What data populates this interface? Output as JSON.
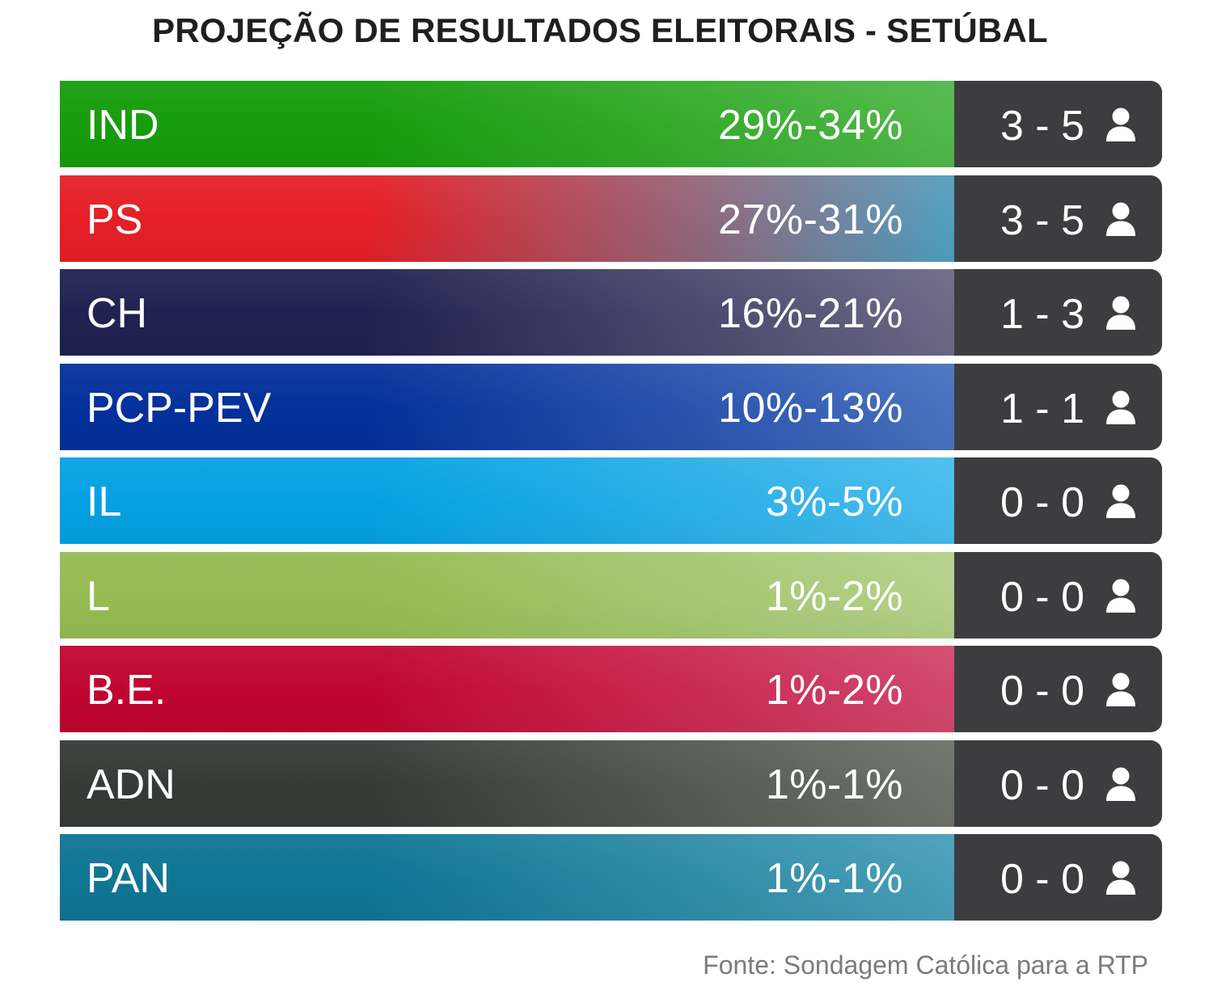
{
  "title": "PROJEÇÃO DE RESULTADOS ELEITORAIS - SETÚBAL",
  "source": "Fonte: Sondagem Católica para a RTP",
  "chart_data": {
    "type": "table",
    "title": "PROJEÇÃO DE RESULTADOS ELEITORAIS - SETÚBAL",
    "columns": [
      "party",
      "vote_range",
      "seats_range"
    ],
    "rows": [
      {
        "party": "IND",
        "range": "29%-34%",
        "seats": "3 - 5",
        "vote_min": 29,
        "vote_max": 34,
        "seats_min": 3,
        "seats_max": 5,
        "color_start": "#169c0c",
        "color_end": "#52b84a"
      },
      {
        "party": "PS",
        "range": "27%-31%",
        "seats": "3 - 5",
        "vote_min": 27,
        "vote_max": 31,
        "seats_min": 3,
        "seats_max": 5,
        "color_start": "#e41f26",
        "color_end": "#4fa0c0"
      },
      {
        "party": "CH",
        "range": "16%-21%",
        "seats": "1 - 3",
        "vote_min": 16,
        "vote_max": 21,
        "seats_min": 1,
        "seats_max": 3,
        "color_start": "#1f2150",
        "color_end": "#6e6a86"
      },
      {
        "party": "PCP-PEV",
        "range": "10%-13%",
        "seats": "1 - 1",
        "vote_min": 10,
        "vote_max": 13,
        "seats_min": 1,
        "seats_max": 1,
        "color_start": "#03309a",
        "color_end": "#4a72bf"
      },
      {
        "party": "IL",
        "range": "3%-5%",
        "seats": "0 - 0",
        "vote_min": 3,
        "vote_max": 5,
        "seats_min": 0,
        "seats_max": 0,
        "color_start": "#04a0e2",
        "color_end": "#49bcec"
      },
      {
        "party": "L",
        "range": "1%-2%",
        "seats": "0 - 0",
        "vote_min": 1,
        "vote_max": 2,
        "seats_min": 0,
        "seats_max": 0,
        "color_start": "#95bb52",
        "color_end": "#b4d08a"
      },
      {
        "party": "B.E.",
        "range": "1%-2%",
        "seats": "0 - 0",
        "vote_min": 1,
        "vote_max": 2,
        "seats_min": 0,
        "seats_max": 0,
        "color_start": "#bf0530",
        "color_end": "#d2486e"
      },
      {
        "party": "ADN",
        "range": "1%-1%",
        "seats": "0 - 0",
        "vote_min": 1,
        "vote_max": 1,
        "seats_min": 0,
        "seats_max": 0,
        "color_start": "#353a36",
        "color_end": "#6e736b"
      },
      {
        "party": "PAN",
        "range": "1%-1%",
        "seats": "0 - 0",
        "vote_min": 1,
        "vote_max": 1,
        "seats_min": 0,
        "seats_max": 0,
        "color_start": "#0e7593",
        "color_end": "#4a9fb8"
      }
    ],
    "icons": {
      "seats": "person-icon"
    },
    "colors": {
      "seats_box": "#3d3d40",
      "text": "#ffffff",
      "title": "#1f1f1f",
      "source": "#7b7b7b"
    }
  }
}
